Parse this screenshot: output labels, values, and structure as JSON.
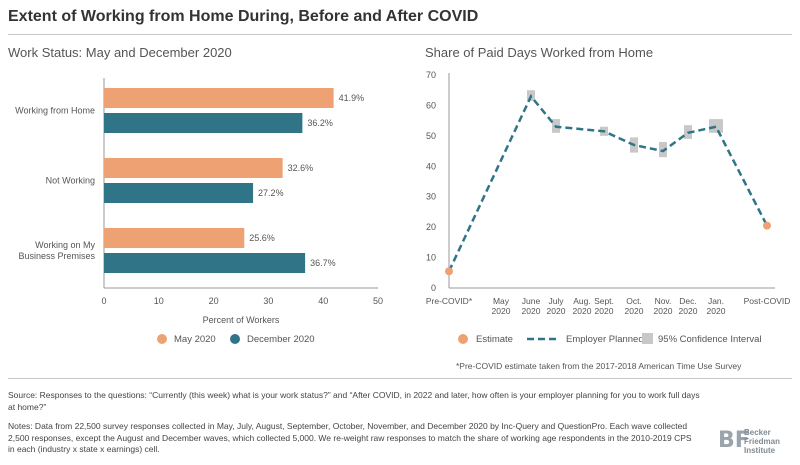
{
  "header": {
    "title": "Extent of Working from Home During, Before and After COVID"
  },
  "left_chart": {
    "title": "Work Status: May and December 2020"
  },
  "right_chart": {
    "title": "Share of Paid Days Worked from Home",
    "footnote": "*Pre-COVID estimate taken from the 2017-2018 American Time Use Survey"
  },
  "footer": {
    "source": "Source: Responses to the questions: “Currently (this week) what is your work status?” and “After COVID, in 2022 and later, how often is your employer planning for you to work full days at home?”",
    "notes": "Notes: Data from 22,500 survey responses collected in May, July, August, September, October, November, and December 2020 by Inc-Query and QuestionPro. Each wave collected 2,500 responses, except the August and December waves, which collected 5,000. We re-weight raw responses to match the share of working age respondents in the 2010-2019 CPS in each (industry x state x earnings) cell.",
    "logo": [
      "Becker",
      "Friedman",
      "Institute"
    ],
    "logo_mark": "BF"
  },
  "colors": {
    "may": "#eea274",
    "december": "#2f7487",
    "ci": "#c8c8c8",
    "text": "#555555"
  },
  "chart_data": [
    {
      "type": "bar",
      "orientation": "horizontal",
      "title": "Work Status: May and December 2020",
      "xlabel": "Percent of Workers",
      "xlim": [
        0,
        50
      ],
      "xticks": [
        0,
        10,
        20,
        30,
        40,
        50
      ],
      "categories": [
        "Working from Home",
        "Not Working",
        "Working on My Business Premises"
      ],
      "category_lines": [
        [
          "Working from Home"
        ],
        [
          "Not Working"
        ],
        [
          "Working on My",
          "Business Premises"
        ]
      ],
      "series": [
        {
          "name": "May 2020",
          "color": "#eea274",
          "values": [
            41.9,
            32.6,
            25.6
          ],
          "labels": [
            "41.9%",
            "32.6%",
            "25.6%"
          ]
        },
        {
          "name": "December 2020",
          "color": "#2f7487",
          "values": [
            36.2,
            27.2,
            36.7
          ],
          "labels": [
            "36.2%",
            "27.2%",
            "36.7%"
          ]
        }
      ],
      "legend": "bottom"
    },
    {
      "type": "line",
      "title": "Share of Paid Days Worked from Home",
      "ylim": [
        0,
        70
      ],
      "yticks": [
        0,
        10,
        20,
        30,
        40,
        50,
        60,
        70
      ],
      "x_categories": [
        [
          "Pre-COVID*"
        ],
        [
          "May",
          "2020"
        ],
        [
          "June",
          "2020"
        ],
        [
          "July",
          "2020"
        ],
        [
          "Aug.",
          "2020"
        ],
        [
          "Sept.",
          "2020"
        ],
        [
          "Oct.",
          "2020"
        ],
        [
          "Nov.",
          "2020"
        ],
        [
          "Dec.",
          "2020"
        ],
        [
          "Jan.",
          "2020"
        ],
        [
          "Post-COVID"
        ]
      ],
      "series": [
        {
          "name": "Employer Planned",
          "style": "dashed",
          "color": "#2f7487",
          "points": [
            {
              "x": "Pre-COVID*",
              "y": 5.5
            },
            {
              "x": "June 2020",
              "y": 63
            },
            {
              "x": "July 2020",
              "y": 53
            },
            {
              "x": "Sept. 2020",
              "y": 51.5
            },
            {
              "x": "Oct. 2020",
              "y": 47
            },
            {
              "x": "Nov. 2020",
              "y": 45
            },
            {
              "x": "Dec. 2020",
              "y": 51
            },
            {
              "x": "Jan. 2020",
              "y": 53
            },
            {
              "x": "Post-COVID",
              "y": 20.5
            }
          ]
        },
        {
          "name": "95% Confidence Interval",
          "color": "#c8c8c8",
          "intervals": [
            {
              "x": "June 2020",
              "low": 61.5,
              "high": 65
            },
            {
              "x": "July 2020",
              "low": 51,
              "high": 55.5
            },
            {
              "x": "Sept. 2020",
              "low": 50,
              "high": 53
            },
            {
              "x": "Oct. 2020",
              "low": 44.5,
              "high": 49.5
            },
            {
              "x": "Nov. 2020",
              "low": 43,
              "high": 48
            },
            {
              "x": "Dec. 2020",
              "low": 49,
              "high": 53.5
            },
            {
              "x": "Jan. 2020",
              "low": 51,
              "high": 55.5
            }
          ]
        },
        {
          "name": "Estimate",
          "color": "#eea274",
          "points": [
            {
              "x": "Pre-COVID*",
              "y": 5.5
            },
            {
              "x": "Post-COVID",
              "y": 20.5
            }
          ]
        }
      ],
      "legend": "bottom"
    }
  ]
}
